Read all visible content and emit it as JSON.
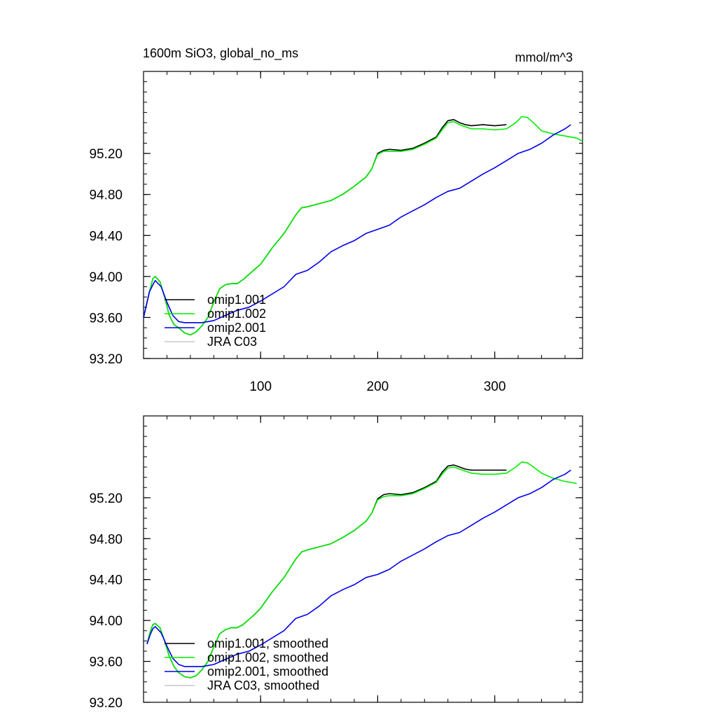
{
  "chart_data": [
    {
      "type": "line",
      "title": "1600m SiO3, global_no_ms",
      "units_label": "mmol/m^3",
      "xlim": [
        0,
        375
      ],
      "ylim": [
        93.2,
        96.0
      ],
      "x_ticks": [
        100,
        200,
        300
      ],
      "x_tick_labels": [
        "100",
        "200",
        "300"
      ],
      "y_ticks": [
        93.2,
        93.6,
        94.0,
        94.4,
        94.8,
        95.2
      ],
      "y_tick_labels": [
        "93.20",
        "93.60",
        "94.00",
        "94.40",
        "94.80",
        "95.20"
      ],
      "legend_position": "bottom-left",
      "series": [
        {
          "name": "omip1.001",
          "color": "#000000",
          "x": [
            0,
            5,
            8,
            10,
            14,
            18,
            22,
            26,
            30,
            35,
            40,
            45,
            50,
            55,
            60,
            65,
            70,
            75,
            80,
            85,
            90,
            95,
            100,
            110,
            120,
            130,
            135,
            140,
            150,
            160,
            170,
            180,
            190,
            195,
            200,
            205,
            210,
            220,
            230,
            240,
            250,
            255,
            260,
            265,
            270,
            275,
            280,
            290,
            300,
            310
          ],
          "values": [
            93.6,
            93.85,
            93.98,
            94.0,
            93.95,
            93.8,
            93.62,
            93.53,
            93.5,
            93.45,
            93.43,
            93.46,
            93.52,
            93.6,
            93.75,
            93.88,
            93.92,
            93.93,
            93.93,
            93.97,
            94.02,
            94.07,
            94.12,
            94.28,
            94.42,
            94.6,
            94.67,
            94.68,
            94.71,
            94.74,
            94.8,
            94.88,
            94.97,
            95.05,
            95.2,
            95.23,
            95.24,
            95.23,
            95.25,
            95.3,
            95.36,
            95.45,
            95.52,
            95.53,
            95.5,
            95.48,
            95.47,
            95.48,
            95.47,
            95.48
          ]
        },
        {
          "name": "omip1.002",
          "color": "#00ee00",
          "x": [
            0,
            5,
            8,
            10,
            14,
            18,
            22,
            26,
            30,
            35,
            40,
            45,
            50,
            55,
            60,
            65,
            70,
            75,
            80,
            85,
            90,
            95,
            100,
            110,
            120,
            130,
            135,
            140,
            150,
            160,
            170,
            180,
            190,
            195,
            200,
            205,
            210,
            220,
            230,
            240,
            250,
            255,
            260,
            265,
            270,
            275,
            280,
            290,
            300,
            310,
            318,
            323,
            328,
            333,
            340,
            350,
            360,
            370,
            375
          ],
          "values": [
            93.6,
            93.85,
            93.98,
            94.0,
            93.95,
            93.8,
            93.62,
            93.53,
            93.5,
            93.45,
            93.43,
            93.46,
            93.52,
            93.6,
            93.75,
            93.88,
            93.92,
            93.93,
            93.93,
            93.97,
            94.02,
            94.07,
            94.12,
            94.28,
            94.42,
            94.6,
            94.67,
            94.68,
            94.71,
            94.74,
            94.8,
            94.88,
            94.97,
            95.05,
            95.19,
            95.22,
            95.22,
            95.22,
            95.24,
            95.29,
            95.35,
            95.43,
            95.5,
            95.51,
            95.48,
            95.46,
            95.44,
            95.44,
            95.43,
            95.44,
            95.5,
            95.56,
            95.55,
            95.5,
            95.42,
            95.39,
            95.37,
            95.35,
            95.32
          ]
        },
        {
          "name": "omip2.001",
          "color": "#0000ee",
          "x": [
            0,
            5,
            8,
            10,
            15,
            20,
            25,
            30,
            35,
            40,
            45,
            50,
            55,
            60,
            70,
            80,
            90,
            100,
            120,
            130,
            140,
            150,
            160,
            170,
            180,
            190,
            200,
            210,
            220,
            230,
            240,
            250,
            260,
            270,
            280,
            290,
            300,
            310,
            320,
            330,
            340,
            350,
            360,
            365
          ],
          "values": [
            93.6,
            93.85,
            93.92,
            93.96,
            93.9,
            93.75,
            93.62,
            93.56,
            93.55,
            93.55,
            93.55,
            93.55,
            93.56,
            93.57,
            93.62,
            93.67,
            93.7,
            93.76,
            93.9,
            94.02,
            94.06,
            94.14,
            94.24,
            94.3,
            94.35,
            94.42,
            94.46,
            94.5,
            94.58,
            94.64,
            94.7,
            94.77,
            94.83,
            94.86,
            94.93,
            95.0,
            95.06,
            95.13,
            95.2,
            95.24,
            95.3,
            95.38,
            95.44,
            95.48
          ]
        },
        {
          "name": "JRA C03",
          "color": "#c8c8c8",
          "x": [],
          "values": []
        }
      ]
    },
    {
      "type": "line",
      "xlim": [
        0,
        375
      ],
      "ylim": [
        93.2,
        96.0
      ],
      "x_ticks": [
        100,
        200,
        300
      ],
      "y_ticks": [
        93.2,
        93.6,
        94.0,
        94.4,
        94.8,
        95.2
      ],
      "y_tick_labels": [
        "93.20",
        "93.60",
        "94.00",
        "94.40",
        "94.80",
        "95.20"
      ],
      "legend_position": "bottom-left",
      "series": [
        {
          "name": "omip1.001, smoothed",
          "color": "#000000",
          "x": [
            3,
            6,
            8,
            10,
            14,
            18,
            22,
            26,
            30,
            35,
            40,
            45,
            50,
            55,
            60,
            65,
            70,
            75,
            80,
            85,
            90,
            95,
            100,
            110,
            120,
            130,
            135,
            140,
            150,
            160,
            170,
            180,
            190,
            195,
            200,
            205,
            210,
            220,
            230,
            240,
            250,
            255,
            260,
            265,
            270,
            275,
            280,
            290,
            300,
            310
          ],
          "values": [
            93.77,
            93.9,
            93.96,
            93.97,
            93.93,
            93.8,
            93.65,
            93.55,
            93.49,
            93.45,
            93.44,
            93.46,
            93.52,
            93.6,
            93.74,
            93.87,
            93.91,
            93.93,
            93.93,
            93.96,
            94.01,
            94.06,
            94.12,
            94.28,
            94.42,
            94.6,
            94.67,
            94.69,
            94.72,
            94.75,
            94.81,
            94.88,
            94.97,
            95.05,
            95.19,
            95.23,
            95.24,
            95.23,
            95.25,
            95.3,
            95.36,
            95.45,
            95.51,
            95.52,
            95.5,
            95.48,
            95.47,
            95.47,
            95.47,
            95.47
          ]
        },
        {
          "name": "omip1.002, smoothed",
          "color": "#00ee00",
          "x": [
            3,
            6,
            8,
            10,
            14,
            18,
            22,
            26,
            30,
            35,
            40,
            45,
            50,
            55,
            60,
            65,
            70,
            75,
            80,
            85,
            90,
            95,
            100,
            110,
            120,
            130,
            135,
            140,
            150,
            160,
            170,
            180,
            190,
            195,
            200,
            205,
            210,
            220,
            230,
            240,
            250,
            255,
            260,
            265,
            270,
            275,
            280,
            290,
            300,
            310,
            318,
            323,
            328,
            333,
            340,
            350,
            360,
            370
          ],
          "values": [
            93.77,
            93.9,
            93.96,
            93.97,
            93.93,
            93.8,
            93.65,
            93.55,
            93.49,
            93.45,
            93.44,
            93.46,
            93.52,
            93.6,
            93.74,
            93.87,
            93.91,
            93.93,
            93.93,
            93.96,
            94.01,
            94.06,
            94.12,
            94.28,
            94.42,
            94.6,
            94.67,
            94.69,
            94.72,
            94.75,
            94.81,
            94.88,
            94.97,
            95.05,
            95.18,
            95.21,
            95.22,
            95.22,
            95.24,
            95.29,
            95.35,
            95.43,
            95.49,
            95.5,
            95.48,
            95.46,
            95.44,
            95.43,
            95.43,
            95.44,
            95.5,
            95.55,
            95.54,
            95.5,
            95.44,
            95.39,
            95.36,
            95.34
          ]
        },
        {
          "name": "omip2.001, smoothed",
          "color": "#0000ee",
          "x": [
            3,
            6,
            8,
            10,
            15,
            20,
            25,
            30,
            35,
            40,
            45,
            50,
            55,
            60,
            70,
            80,
            90,
            100,
            120,
            130,
            140,
            150,
            160,
            170,
            180,
            190,
            200,
            210,
            220,
            230,
            240,
            250,
            260,
            270,
            280,
            290,
            300,
            310,
            320,
            330,
            340,
            350,
            360,
            365
          ],
          "values": [
            93.77,
            93.87,
            93.92,
            93.94,
            93.88,
            93.75,
            93.63,
            93.57,
            93.55,
            93.55,
            93.55,
            93.55,
            93.56,
            93.57,
            93.62,
            93.67,
            93.7,
            93.76,
            93.9,
            94.02,
            94.06,
            94.14,
            94.24,
            94.3,
            94.35,
            94.42,
            94.45,
            94.5,
            94.58,
            94.64,
            94.7,
            94.77,
            94.83,
            94.86,
            94.93,
            95.0,
            95.06,
            95.13,
            95.2,
            95.24,
            95.3,
            95.38,
            95.43,
            95.47
          ]
        },
        {
          "name": "JRA C03, smoothed",
          "color": "#c8c8c8",
          "x": [],
          "values": []
        }
      ]
    }
  ]
}
